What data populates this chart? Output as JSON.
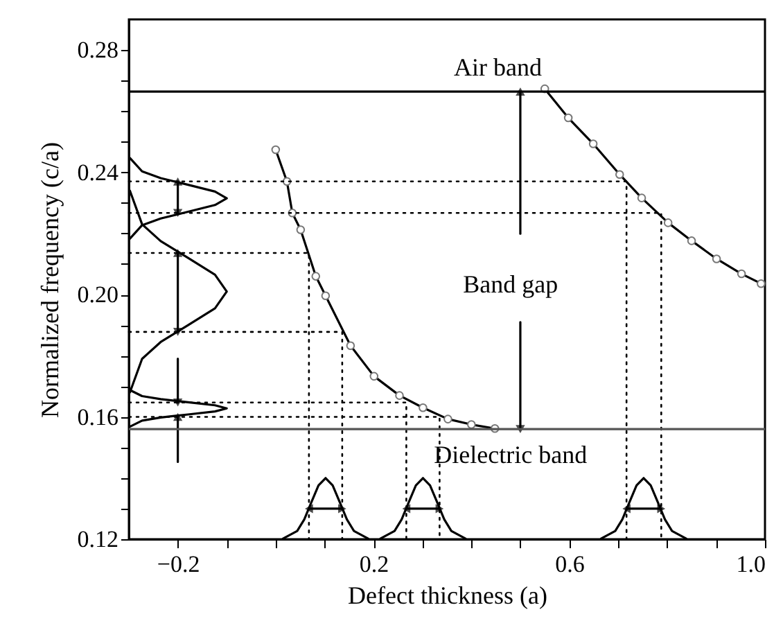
{
  "chart_data": {
    "type": "line",
    "xlabel": "Defect thickness (a)",
    "ylabel": "Normalized frequency (c/a)",
    "xlim": [
      -0.3,
      1.0
    ],
    "ylim": [
      0.12,
      0.29
    ],
    "xticks": [
      {
        "value": -0.2,
        "label": "−0.2"
      },
      {
        "value": -0.1,
        "label": null
      },
      {
        "value": 0,
        "label": null
      },
      {
        "value": 0.1,
        "label": null
      },
      {
        "value": 0.2,
        "label": "0.2"
      },
      {
        "value": 0.3,
        "label": null
      },
      {
        "value": 0.4,
        "label": null
      },
      {
        "value": 0.5,
        "label": null
      },
      {
        "value": 0.6,
        "label": "0.6"
      },
      {
        "value": 0.7,
        "label": null
      },
      {
        "value": 0.8,
        "label": null
      },
      {
        "value": 0.9,
        "label": null
      },
      {
        "value": 1.0,
        "label": "1.0"
      }
    ],
    "yticks": [
      {
        "value": 0.12,
        "label": "0.12"
      },
      {
        "value": 0.13,
        "label": null
      },
      {
        "value": 0.14,
        "label": null
      },
      {
        "value": 0.15,
        "label": null
      },
      {
        "value": 0.16,
        "label": "0.16"
      },
      {
        "value": 0.17,
        "label": null
      },
      {
        "value": 0.18,
        "label": null
      },
      {
        "value": 0.19,
        "label": null
      },
      {
        "value": 0.2,
        "label": "0.20"
      },
      {
        "value": 0.21,
        "label": null
      },
      {
        "value": 0.22,
        "label": null
      },
      {
        "value": 0.23,
        "label": null
      },
      {
        "value": 0.24,
        "label": "0.24"
      },
      {
        "value": 0.25,
        "label": null
      },
      {
        "value": 0.26,
        "label": null
      },
      {
        "value": 0.27,
        "label": null
      },
      {
        "value": 0.28,
        "label": "0.28"
      }
    ],
    "ref_lines": [
      {
        "axis": "y",
        "value": 0.2664,
        "color": "#000000"
      },
      {
        "axis": "y",
        "value": 0.156,
        "color": "#555555"
      }
    ],
    "annotations": [
      "Air band",
      "Band gap",
      "Dielectric band"
    ],
    "series": [
      {
        "color": "#000000",
        "marker": "circle",
        "x": [
          0.0,
          0.023,
          0.034,
          0.051,
          0.082,
          0.102,
          0.153,
          0.201,
          0.253,
          0.301,
          0.352,
          0.4,
          0.448
        ],
        "values": [
          0.2474,
          0.237,
          0.2267,
          0.2212,
          0.206,
          0.1996,
          0.1833,
          0.1733,
          0.167,
          0.163,
          0.1593,
          0.1575,
          0.1562
        ]
      },
      {
        "color": "#000000",
        "marker": "circle",
        "x": [
          0.55,
          0.598,
          0.649,
          0.703,
          0.748,
          0.802,
          0.85,
          0.901,
          0.952,
          0.992
        ],
        "values": [
          0.2673,
          0.2578,
          0.2493,
          0.2393,
          0.2316,
          0.2235,
          0.2176,
          0.2117,
          0.2068,
          0.2036
        ]
      },
      {
        "color": "#000000",
        "x": [
          -0.298,
          -0.273,
          -0.235,
          -0.179,
          -0.124,
          -0.1,
          -0.124,
          -0.179,
          -0.235,
          -0.273,
          -0.298
        ],
        "values": [
          0.2447,
          0.2403,
          0.2381,
          0.2359,
          0.2337,
          0.2315,
          0.2293,
          0.2271,
          0.2249,
          0.2227,
          0.2183
        ]
      },
      {
        "color": "#000000",
        "x": [
          -0.298,
          -0.273,
          -0.235,
          -0.179,
          -0.124,
          -0.1,
          -0.124,
          -0.179,
          -0.235,
          -0.273,
          -0.298
        ],
        "values": [
          0.234,
          0.223,
          0.2175,
          0.212,
          0.2065,
          0.201,
          0.1955,
          0.19,
          0.1845,
          0.179,
          0.168
        ]
      },
      {
        "color": "#000000",
        "x": [
          -0.298,
          -0.273,
          -0.235,
          -0.179,
          -0.124,
          -0.1,
          -0.124,
          -0.179,
          -0.235,
          -0.273,
          -0.298
        ],
        "values": [
          0.1688,
          0.1668,
          0.1658,
          0.1648,
          0.1638,
          0.1628,
          0.1618,
          0.1608,
          0.1598,
          0.1588,
          0.1568
        ]
      },
      {
        "color": "#000000",
        "x": [
          0.015,
          0.044,
          0.0585,
          0.073,
          0.0875,
          0.102,
          0.1165,
          0.131,
          0.1455,
          0.16,
          0.189
        ],
        "values": [
          0.1202,
          0.1227,
          0.1265,
          0.1321,
          0.1376,
          0.14,
          0.1376,
          0.1321,
          0.1265,
          0.1227,
          0.1202
        ]
      },
      {
        "color": "#000000",
        "x": [
          0.214,
          0.243,
          0.2575,
          0.272,
          0.2865,
          0.301,
          0.3155,
          0.33,
          0.3445,
          0.359,
          0.388
        ],
        "values": [
          0.1202,
          0.1227,
          0.1265,
          0.1321,
          0.1376,
          0.14,
          0.1376,
          0.1321,
          0.1265,
          0.1227,
          0.1202
        ]
      },
      {
        "color": "#000000",
        "x": [
          0.665,
          0.694,
          0.7085,
          0.723,
          0.7375,
          0.752,
          0.7665,
          0.781,
          0.7955,
          0.81,
          0.839
        ],
        "values": [
          0.1202,
          0.1227,
          0.1265,
          0.1321,
          0.1376,
          0.14,
          0.1376,
          0.1321,
          0.1265,
          0.1227,
          0.1202
        ]
      },
      {
        "color": "#000000",
        "line_style": "dotted",
        "x": [
          -0.3,
          0.717,
          0.717
        ],
        "values": [
          0.237,
          0.237,
          0.12
        ]
      },
      {
        "color": "#000000",
        "line_style": "dotted",
        "x": [
          -0.3,
          0.788,
          0.788
        ],
        "values": [
          0.2267,
          0.2267,
          0.12
        ]
      },
      {
        "color": "#000000",
        "line_style": "dotted",
        "x": [
          -0.3,
          0.068,
          0.068
        ],
        "values": [
          0.2136,
          0.2136,
          0.12
        ]
      },
      {
        "color": "#000000",
        "line_style": "dotted",
        "x": [
          -0.3,
          0.136,
          0.136
        ],
        "values": [
          0.1878,
          0.1878,
          0.12
        ]
      },
      {
        "color": "#000000",
        "line_style": "dotted",
        "x": [
          -0.3,
          0.267,
          0.267
        ],
        "values": [
          0.1647,
          0.1647,
          0.12
        ]
      },
      {
        "color": "#000000",
        "line_style": "dotted",
        "x": [
          -0.3,
          0.335,
          0.335
        ],
        "values": [
          0.16,
          0.16,
          0.12
        ]
      },
      {
        "color": "#000000",
        "marker": "triangle",
        "x": [
          -0.2,
          -0.2,
          -0.2
        ],
        "values": [
          0.237,
          0.2318,
          0.2267
        ]
      },
      {
        "color": "#000000",
        "marker": "triangle",
        "x": [
          -0.2,
          -0.2,
          -0.2
        ],
        "values": [
          0.2136,
          0.2007,
          0.1878
        ]
      },
      {
        "color": "#000000",
        "marker": "triangle",
        "x": [
          -0.2,
          -0.2
        ],
        "values": [
          0.179,
          0.1647
        ]
      },
      {
        "color": "#000000",
        "marker": "triangle",
        "x": [
          -0.2,
          -0.2
        ],
        "values": [
          0.1453,
          0.16
        ]
      },
      {
        "color": "#000000",
        "marker": "triangle",
        "x": [
          0.068,
          0.102,
          0.136
        ],
        "values": [
          0.13,
          0.13,
          0.13
        ]
      },
      {
        "color": "#000000",
        "marker": "triangle",
        "x": [
          0.267,
          0.301,
          0.335
        ],
        "values": [
          0.13,
          0.13,
          0.13
        ]
      },
      {
        "color": "#000000",
        "marker": "triangle",
        "x": [
          0.717,
          0.752,
          0.788
        ],
        "values": [
          0.13,
          0.13,
          0.13
        ]
      },
      {
        "color": "#000000",
        "marker": "triangle",
        "x": [
          0.5,
          0.5
        ],
        "values": [
          0.2199,
          0.2664
        ]
      },
      {
        "color": "#000000",
        "marker": "triangle",
        "x": [
          0.5,
          0.5
        ],
        "values": [
          0.191,
          0.156
        ]
      }
    ]
  }
}
